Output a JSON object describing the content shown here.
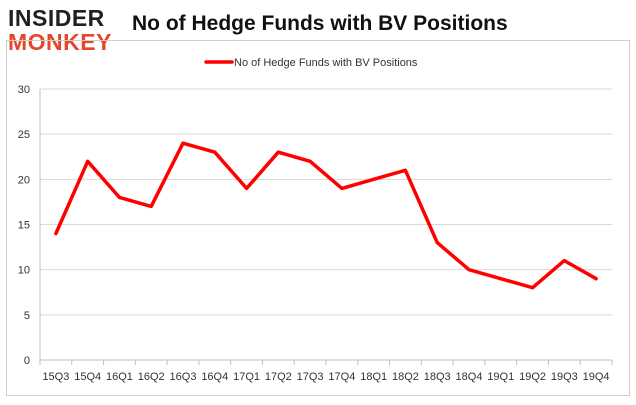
{
  "logo": {
    "line1": "INSIDER",
    "line2": "MONKEY"
  },
  "chart_data": {
    "type": "line",
    "title": "No of Hedge Funds with BV Positions",
    "categories": [
      "15Q3",
      "15Q4",
      "16Q1",
      "16Q2",
      "16Q3",
      "16Q4",
      "17Q1",
      "17Q2",
      "17Q3",
      "17Q4",
      "18Q1",
      "18Q2",
      "18Q3",
      "18Q4",
      "19Q1",
      "19Q2",
      "19Q3",
      "19Q4"
    ],
    "series": [
      {
        "name": "No of Hedge Funds with BV Positions",
        "color": "#ff0000",
        "values": [
          14,
          22,
          18,
          17,
          24,
          23,
          19,
          23,
          22,
          19,
          20,
          21,
          13,
          10,
          9,
          8,
          11,
          9
        ]
      }
    ],
    "ylim": [
      0,
      30
    ],
    "yticks": [
      0,
      5,
      10,
      15,
      20,
      25,
      30
    ],
    "grid": true,
    "legend_position": "top-center",
    "xlabel": "",
    "ylabel": ""
  }
}
